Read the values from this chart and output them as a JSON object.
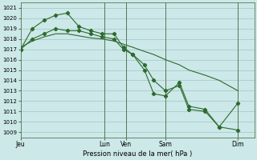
{
  "background_color": "#cce8e8",
  "grid_color": "#aacccc",
  "line_color": "#2d6a2d",
  "xlabel": "Pression niveau de la mer( hPa )",
  "ylim": [
    1008.5,
    1021.5
  ],
  "yticks": [
    1009,
    1010,
    1011,
    1012,
    1013,
    1014,
    1015,
    1016,
    1017,
    1018,
    1019,
    1020,
    1021
  ],
  "xtick_labels": [
    "Jeu",
    "Lun",
    "Ven",
    "Sam",
    "Dim"
  ],
  "xtick_positions": [
    0,
    36,
    45,
    62,
    93
  ],
  "vline_positions": [
    36,
    45,
    62,
    93
  ],
  "xlim": [
    0,
    100
  ],
  "lines": [
    {
      "x": [
        0,
        5,
        10,
        15,
        20,
        25,
        30,
        35,
        40,
        44,
        48,
        53,
        57,
        62,
        68,
        72,
        79,
        85,
        93
      ],
      "y": [
        1017.0,
        1019.0,
        1019.8,
        1020.3,
        1020.5,
        1019.2,
        1018.8,
        1018.5,
        1018.5,
        1017.2,
        1016.5,
        1015.0,
        1012.7,
        1012.5,
        1013.8,
        1011.5,
        1011.2,
        1009.5,
        1009.2
      ],
      "marker": true
    },
    {
      "x": [
        0,
        5,
        10,
        15,
        20,
        25,
        30,
        35,
        40,
        44,
        48,
        53,
        57,
        62,
        68,
        72,
        79,
        85,
        93
      ],
      "y": [
        1017.0,
        1018.0,
        1018.5,
        1019.0,
        1018.8,
        1018.8,
        1018.5,
        1018.2,
        1018.0,
        1017.0,
        1016.5,
        1015.5,
        1014.0,
        1013.0,
        1013.5,
        1011.2,
        1011.0,
        1009.5,
        1011.8
      ],
      "marker": true
    },
    {
      "x": [
        0,
        5,
        10,
        15,
        20,
        25,
        30,
        35,
        40,
        44,
        48,
        53,
        57,
        62,
        68,
        72,
        79,
        85,
        93
      ],
      "y": [
        1017.2,
        1017.8,
        1018.2,
        1018.5,
        1018.5,
        1018.3,
        1018.1,
        1018.0,
        1017.8,
        1017.5,
        1017.2,
        1016.8,
        1016.5,
        1016.0,
        1015.5,
        1015.0,
        1014.5,
        1014.0,
        1013.0
      ],
      "marker": false
    }
  ],
  "figsize": [
    3.2,
    2.0
  ],
  "dpi": 100
}
